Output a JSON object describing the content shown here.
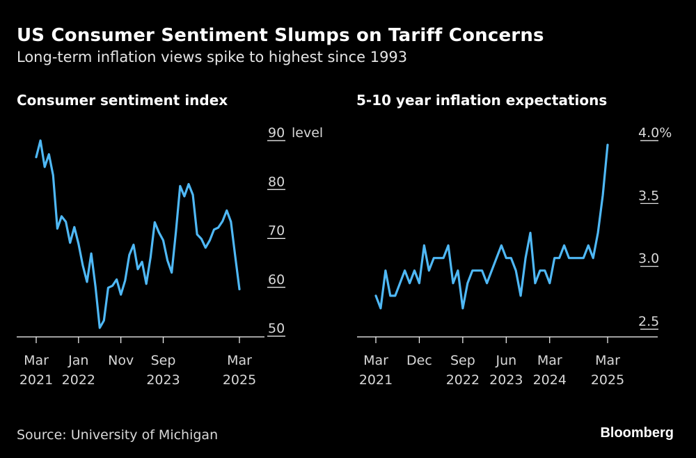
{
  "title": "US Consumer Sentiment Slumps on Tariff Concerns",
  "subtitle": "Long-term inflation views spike to highest since 1993",
  "source": "Source: University of Michigan",
  "brand": "Bloomberg",
  "colors": {
    "line": "#4fb8f5",
    "background": "#000000",
    "axis": "#ffffff"
  },
  "chart_data": [
    {
      "type": "line",
      "title": "Consumer sentiment index",
      "ylabel": "level",
      "ylim": [
        47,
        90
      ],
      "yticks": [
        90,
        80,
        70,
        60,
        50
      ],
      "ytick_labels": [
        "90",
        "80",
        "70",
        "60",
        "50"
      ],
      "xlim": [
        "2021-03",
        "2025-03"
      ],
      "xticks": [
        {
          "x": "2021-03",
          "label": [
            "Mar",
            "2021"
          ]
        },
        {
          "x": "2022-01",
          "label": [
            "Jan",
            "2022"
          ]
        },
        {
          "x": "2022-11",
          "label": [
            "Nov",
            ""
          ]
        },
        {
          "x": "2023-09",
          "label": [
            "Sep",
            "2023"
          ]
        },
        {
          "x": "2025-03",
          "label": [
            "Mar",
            "2025"
          ]
        }
      ],
      "x": [
        "2021-03",
        "2021-04",
        "2021-05",
        "2021-06",
        "2021-07",
        "2021-08",
        "2021-09",
        "2021-10",
        "2021-11",
        "2021-12",
        "2022-01",
        "2022-02",
        "2022-03",
        "2022-04",
        "2022-05",
        "2022-06",
        "2022-07",
        "2022-08",
        "2022-09",
        "2022-10",
        "2022-11",
        "2022-12",
        "2023-01",
        "2023-02",
        "2023-03",
        "2023-04",
        "2023-05",
        "2023-06",
        "2023-07",
        "2023-08",
        "2023-09",
        "2023-10",
        "2023-11",
        "2023-12",
        "2024-01",
        "2024-02",
        "2024-03",
        "2024-04",
        "2024-05",
        "2024-06",
        "2024-07",
        "2024-08",
        "2024-09",
        "2024-10",
        "2024-11",
        "2024-12",
        "2025-01",
        "2025-02",
        "2025-03"
      ],
      "series": [
        {
          "values": [
            84.9,
            88.3,
            82.9,
            85.5,
            81.2,
            70.3,
            72.8,
            71.7,
            67.4,
            70.6,
            67.2,
            62.8,
            59.4,
            65.2,
            58.4,
            50.0,
            51.5,
            58.2,
            58.6,
            59.9,
            56.8,
            59.7,
            64.9,
            67.0,
            62.0,
            63.5,
            59.0,
            64.4,
            71.6,
            69.5,
            67.9,
            63.8,
            61.3,
            69.7,
            79.0,
            76.9,
            79.4,
            77.2,
            69.1,
            68.2,
            66.4,
            67.9,
            70.1,
            70.5,
            71.8,
            74.0,
            71.7,
            64.7,
            57.9
          ]
        }
      ]
    },
    {
      "type": "line",
      "title": "5-10 year inflation expectations",
      "ylabel": "%",
      "ylim": [
        2.35,
        4.0
      ],
      "yticks": [
        4.0,
        3.5,
        3.0,
        2.5
      ],
      "ytick_labels": [
        "4.0%",
        "3.5",
        "3.0",
        "2.5"
      ],
      "xlim": [
        "2021-03",
        "2025-03"
      ],
      "xticks": [
        {
          "x": "2021-03",
          "label": [
            "Mar",
            "2021"
          ]
        },
        {
          "x": "2021-12",
          "label": [
            "Dec",
            ""
          ]
        },
        {
          "x": "2022-09",
          "label": [
            "Sep",
            "2022"
          ]
        },
        {
          "x": "2023-06",
          "label": [
            "Jun",
            "2023"
          ]
        },
        {
          "x": "2024-03",
          "label": [
            "Mar",
            "2024"
          ]
        },
        {
          "x": "2025-03",
          "label": [
            "Mar",
            "2025"
          ]
        }
      ],
      "x": [
        "2021-03",
        "2021-04",
        "2021-05",
        "2021-06",
        "2021-07",
        "2021-08",
        "2021-09",
        "2021-10",
        "2021-11",
        "2021-12",
        "2022-01",
        "2022-02",
        "2022-03",
        "2022-04",
        "2022-05",
        "2022-06",
        "2022-07",
        "2022-08",
        "2022-09",
        "2022-10",
        "2022-11",
        "2022-12",
        "2023-01",
        "2023-02",
        "2023-03",
        "2023-04",
        "2023-05",
        "2023-06",
        "2023-07",
        "2023-08",
        "2023-09",
        "2023-10",
        "2023-11",
        "2023-12",
        "2024-01",
        "2024-02",
        "2024-03",
        "2024-04",
        "2024-05",
        "2024-06",
        "2024-07",
        "2024-08",
        "2024-09",
        "2024-10",
        "2024-11",
        "2024-12",
        "2025-01",
        "2025-02",
        "2025-03"
      ],
      "series": [
        {
          "values": [
            2.7,
            2.6,
            2.9,
            2.7,
            2.7,
            2.8,
            2.9,
            2.8,
            2.9,
            2.8,
            3.1,
            2.9,
            3.0,
            3.0,
            3.0,
            3.1,
            2.8,
            2.9,
            2.6,
            2.8,
            2.9,
            2.9,
            2.9,
            2.8,
            2.9,
            3.0,
            3.1,
            3.0,
            3.0,
            2.9,
            2.7,
            3.0,
            3.2,
            2.8,
            2.9,
            2.9,
            2.8,
            3.0,
            3.0,
            3.1,
            3.0,
            3.0,
            3.0,
            3.0,
            3.1,
            3.0,
            3.2,
            3.5,
            3.9
          ]
        }
      ]
    }
  ]
}
